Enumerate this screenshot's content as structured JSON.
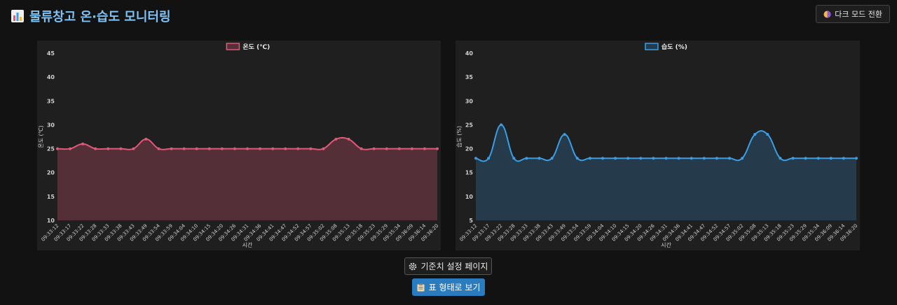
{
  "header": {
    "title": "물류창고 온·습도 모니터링",
    "title_icon": "bar-chart-icon",
    "dark_mode_label": "다크 모드 전환",
    "dark_mode_icon": "half-moon-icon"
  },
  "buttons": {
    "settings_label": "기준치 설정 페이지",
    "settings_icon": "gear-icon",
    "table_view_label": "표 형태로 보기",
    "table_view_icon": "clipboard-icon"
  },
  "colors": {
    "temperature": "#e0587a",
    "humidity": "#3a9ee6",
    "title": "#7fc3f5",
    "table_button": "#2b7bbf"
  },
  "chart_data": [
    {
      "type": "area",
      "legend": "온도 (℃)",
      "xlabel": "시간",
      "ylabel": "온도 (℃)",
      "ylim": [
        10,
        45
      ],
      "yticks": [
        10,
        15,
        20,
        25,
        30,
        35,
        40,
        45
      ],
      "legend_position": "top-center",
      "x": [
        "09:33:12",
        "09:33:17",
        "09:33:22",
        "09:33:28",
        "09:33:33",
        "09:33:38",
        "09:33:43",
        "09:33:49",
        "09:33:54",
        "09:33:59",
        "09:34:04",
        "09:34:10",
        "09:34:15",
        "09:34:20",
        "09:34:26",
        "09:34:31",
        "09:34:36",
        "09:34:41",
        "09:34:47",
        "09:34:52",
        "09:34:57",
        "09:35:02",
        "09:35:08",
        "09:35:13",
        "09:35:18",
        "09:35:23",
        "09:35:29",
        "09:35:34",
        "09:36:09",
        "09:36:14",
        "09:36:20"
      ],
      "values": [
        25,
        25,
        26,
        25,
        25,
        25,
        25,
        27,
        25,
        25,
        25,
        25,
        25,
        25,
        25,
        25,
        25,
        25,
        25,
        25,
        25,
        25,
        27,
        27,
        25,
        25,
        25,
        25,
        25,
        25,
        25
      ]
    },
    {
      "type": "area",
      "legend": "습도 (%)",
      "xlabel": "시간",
      "ylabel": "습도 (%)",
      "ylim": [
        5,
        40
      ],
      "yticks": [
        5,
        10,
        15,
        20,
        25,
        30,
        35,
        40
      ],
      "legend_position": "top-center",
      "x": [
        "09:33:12",
        "09:33:17",
        "09:33:22",
        "09:33:28",
        "09:33:33",
        "09:33:38",
        "09:33:43",
        "09:33:49",
        "09:33:54",
        "09:33:59",
        "09:34:04",
        "09:34:10",
        "09:34:15",
        "09:34:20",
        "09:34:26",
        "09:34:31",
        "09:34:36",
        "09:34:41",
        "09:34:47",
        "09:34:52",
        "09:34:57",
        "09:35:02",
        "09:35:08",
        "09:35:13",
        "09:35:18",
        "09:35:23",
        "09:35:29",
        "09:35:34",
        "09:36:09",
        "09:36:14",
        "09:36:20"
      ],
      "values": [
        18,
        18,
        25,
        18,
        18,
        18,
        18,
        23,
        18,
        18,
        18,
        18,
        18,
        18,
        18,
        18,
        18,
        18,
        18,
        18,
        18,
        18,
        23,
        23,
        18,
        18,
        18,
        18,
        18,
        18,
        18
      ]
    }
  ]
}
